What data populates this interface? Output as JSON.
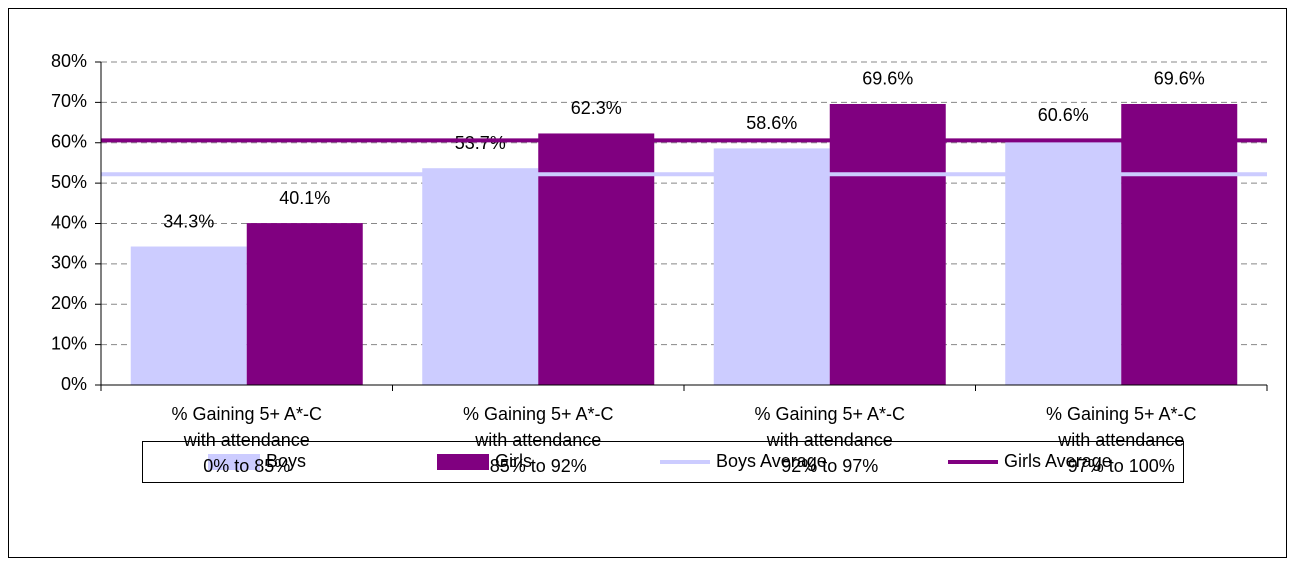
{
  "chart_data": {
    "type": "bar",
    "categories": [
      "% Gaining 5+ A*-C\nwith attendance\n0% to 85%",
      "% Gaining 5+ A*-C\nwith attendance\n85% to 92%",
      "% Gaining 5+ A*-C\nwith attendance\n92% to 97%",
      "% Gaining 5+ A*-C\nwith attendance\n97% to 100%"
    ],
    "series": [
      {
        "name": "Boys",
        "color": "#ccccff",
        "values": [
          34.3,
          53.7,
          58.6,
          60.6
        ],
        "value_labels": [
          "34.3%",
          "53.7%",
          "58.6%",
          "60.6%"
        ]
      },
      {
        "name": "Girls",
        "color": "#800080",
        "values": [
          40.1,
          62.3,
          69.6,
          69.6
        ],
        "value_labels": [
          "40.1%",
          "62.3%",
          "69.6%",
          "69.6%"
        ]
      }
    ],
    "reference_lines": [
      {
        "name": "Boys Average",
        "color": "#ccccff",
        "value": 52.2
      },
      {
        "name": "Girls Average",
        "color": "#800080",
        "value": 60.6
      }
    ],
    "ylim": [
      0,
      80
    ],
    "yticks": [
      {
        "value": 0,
        "label": "0%"
      },
      {
        "value": 10,
        "label": "10%"
      },
      {
        "value": 20,
        "label": "20%"
      },
      {
        "value": 30,
        "label": "30%"
      },
      {
        "value": 40,
        "label": "40%"
      },
      {
        "value": 50,
        "label": "50%"
      },
      {
        "value": 60,
        "label": "60%"
      },
      {
        "value": 70,
        "label": "70%"
      },
      {
        "value": 80,
        "label": "80%"
      }
    ],
    "grid": true,
    "legend": "bottom"
  }
}
